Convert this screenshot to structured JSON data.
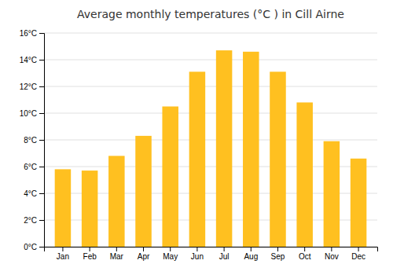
{
  "chart_data": {
    "type": "bar",
    "title": "Average monthly temperatures (°C ) in Cill Airne",
    "categories": [
      "Jan",
      "Feb",
      "Mar",
      "Apr",
      "May",
      "Jun",
      "Jul",
      "Aug",
      "Sep",
      "Oct",
      "Nov",
      "Dec"
    ],
    "values": [
      5.8,
      5.7,
      6.8,
      8.3,
      10.5,
      13.1,
      14.7,
      14.6,
      13.1,
      10.8,
      7.9,
      6.6
    ],
    "color": "#FFC020",
    "ylim": [
      0,
      16
    ],
    "yticks": [
      {
        "value": 0,
        "label": "0°C"
      },
      {
        "value": 2,
        "label": "2°C"
      },
      {
        "value": 4,
        "label": "4°C"
      },
      {
        "value": 6,
        "label": "6°C"
      },
      {
        "value": 8,
        "label": "8°C"
      },
      {
        "value": 10,
        "label": "10°C"
      },
      {
        "value": 12,
        "label": "12°C"
      },
      {
        "value": 14,
        "label": "14°C"
      },
      {
        "value": 16,
        "label": "16°C"
      }
    ],
    "grid": true
  }
}
